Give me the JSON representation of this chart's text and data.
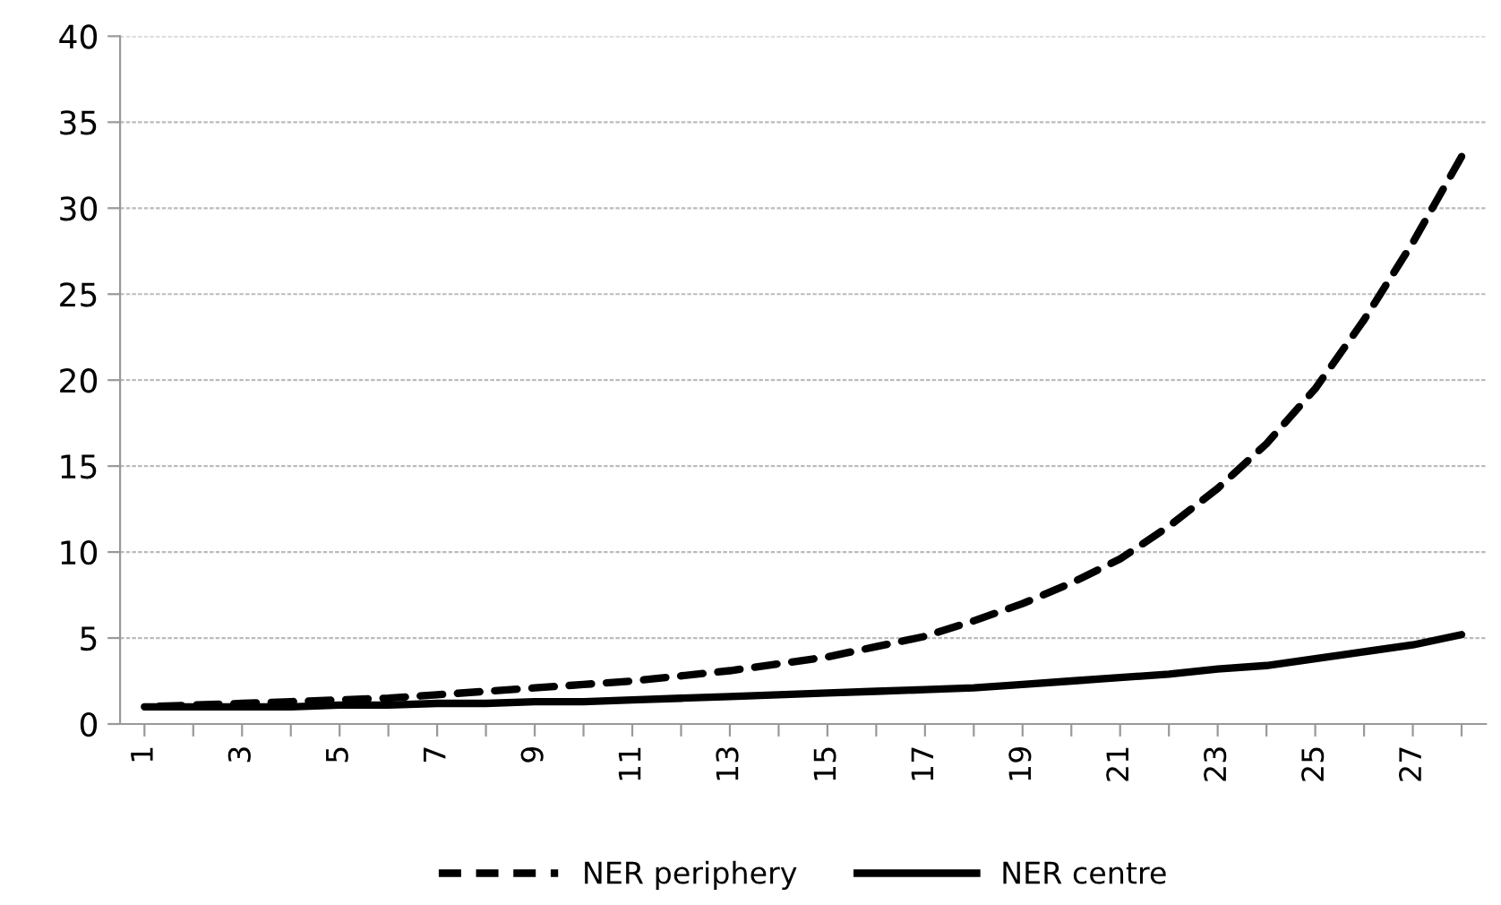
{
  "chart_data": {
    "type": "line",
    "categories": [
      "1",
      null,
      "3",
      null,
      "5",
      null,
      "7",
      null,
      "9",
      null,
      "11",
      null,
      "13",
      null,
      "15",
      null,
      "17",
      null,
      "19",
      null,
      "21",
      null,
      "23",
      null,
      "25",
      null,
      "27",
      null
    ],
    "series": [
      {
        "name": "NER periphery",
        "color": "#000000",
        "line_style": "dashed",
        "values": [
          1.0,
          1.1,
          1.2,
          1.3,
          1.4,
          1.5,
          1.7,
          1.9,
          2.1,
          2.3,
          2.5,
          2.8,
          3.1,
          3.5,
          3.9,
          4.5,
          5.1,
          6.0,
          7.0,
          8.2,
          9.6,
          11.5,
          13.7,
          16.3,
          19.5,
          23.5,
          28,
          33
        ]
      },
      {
        "name": "NER centre",
        "color": "#000000",
        "line_style": "solid",
        "values": [
          1.0,
          1.0,
          1.0,
          1.0,
          1.1,
          1.1,
          1.2,
          1.2,
          1.3,
          1.3,
          1.4,
          1.5,
          1.6,
          1.7,
          1.8,
          1.9,
          2.0,
          2.1,
          2.3,
          2.5,
          2.7,
          2.9,
          3.2,
          3.4,
          3.8,
          4.2,
          4.6,
          5.2
        ]
      }
    ],
    "ylim": [
      0,
      40
    ],
    "yticks": [
      0,
      5,
      10,
      15,
      20,
      25,
      30,
      35,
      40
    ],
    "grid": "y",
    "legend": "bottom",
    "marker": "none"
  }
}
